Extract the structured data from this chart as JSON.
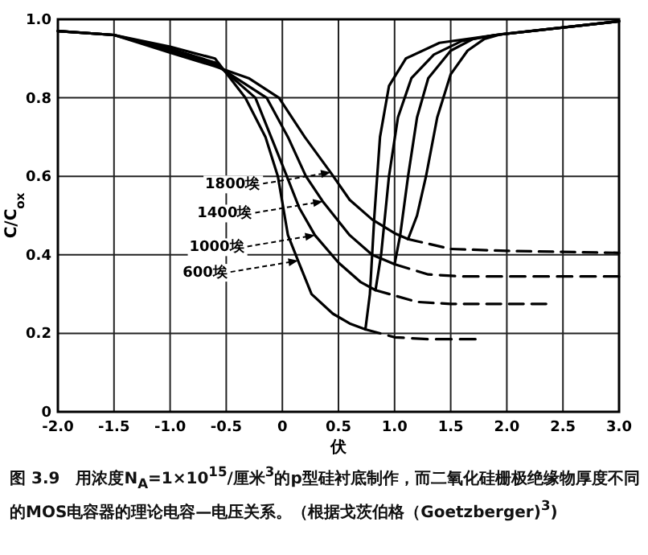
{
  "chart_data": {
    "type": "line",
    "xlabel": "伏",
    "ylabel": "C/C$_{ox}$",
    "xlim": [
      -2,
      3
    ],
    "ylim": [
      0,
      1
    ],
    "xticks": [
      {
        "value": -2,
        "label": "-2.0"
      },
      {
        "value": -1.5,
        "label": "-1.5"
      },
      {
        "value": -1,
        "label": "-1.0"
      },
      {
        "value": -0.5,
        "label": "-0.5"
      },
      0,
      0.5,
      {
        "value": 1,
        "label": "1.0"
      },
      1.5,
      {
        "value": 2,
        "label": "2.0"
      },
      2.5,
      {
        "value": 3,
        "label": "3.0"
      }
    ],
    "yticks": [
      0,
      0.2,
      0.4,
      0.6,
      0.8,
      {
        "value": 1,
        "label": "1.0"
      }
    ],
    "grid": true,
    "series": [
      {
        "color": "#000000",
        "line_style": "solid",
        "x": [
          -2,
          -1.5,
          -1,
          -0.6,
          -0.33,
          -0.15,
          -0.04,
          0.05,
          0.14,
          0.26,
          0.45,
          0.6,
          0.74,
          0.78,
          0.82,
          0.87,
          0.95,
          1.1,
          1.4,
          1.9,
          3
        ],
        "values": [
          0.97,
          0.96,
          0.93,
          0.9,
          0.8,
          0.7,
          0.6,
          0.45,
          0.385,
          0.3,
          0.25,
          0.225,
          0.21,
          0.3,
          0.5,
          0.7,
          0.83,
          0.9,
          0.94,
          0.96,
          0.995
        ]
      },
      {
        "color": "#000000",
        "line_style": "solid",
        "x": [
          -2,
          -1.5,
          -1,
          -0.6,
          -0.24,
          -0.1,
          0.04,
          0.15,
          0.29,
          0.5,
          0.7,
          0.83,
          0.88,
          0.95,
          1.03,
          1.15,
          1.35,
          1.6,
          1.9,
          3
        ],
        "values": [
          0.97,
          0.96,
          0.925,
          0.89,
          0.8,
          0.7,
          0.6,
          0.52,
          0.45,
          0.38,
          0.33,
          0.31,
          0.4,
          0.6,
          0.75,
          0.85,
          0.91,
          0.945,
          0.96,
          0.995
        ]
      },
      {
        "color": "#000000",
        "line_style": "solid",
        "x": [
          -2,
          -1.5,
          -1,
          -0.6,
          -0.14,
          0.05,
          0.21,
          0.36,
          0.6,
          0.8,
          1.0,
          1.05,
          1.12,
          1.2,
          1.3,
          1.5,
          1.7,
          1.9,
          3
        ],
        "values": [
          0.97,
          0.96,
          0.92,
          0.885,
          0.8,
          0.7,
          0.6,
          0.536,
          0.45,
          0.4,
          0.376,
          0.45,
          0.6,
          0.75,
          0.85,
          0.92,
          0.95,
          0.96,
          0.995
        ]
      },
      {
        "color": "#000000",
        "line_style": "solid",
        "x": [
          -2,
          -1.5,
          -1,
          -0.6,
          -0.3,
          -0.03,
          0.2,
          0.43,
          0.6,
          0.8,
          1.0,
          1.12,
          1.2,
          1.28,
          1.38,
          1.5,
          1.65,
          1.8,
          1.95,
          3
        ],
        "values": [
          0.97,
          0.96,
          0.915,
          0.88,
          0.85,
          0.8,
          0.7,
          0.61,
          0.54,
          0.49,
          0.455,
          0.44,
          0.5,
          0.6,
          0.75,
          0.86,
          0.92,
          0.95,
          0.962,
          0.995
        ]
      },
      {
        "color": "#000000",
        "line_style": "dashed",
        "x": [
          0.74,
          1.0,
          1.3,
          1.72
        ],
        "values": [
          0.21,
          0.19,
          0.185,
          0.185
        ]
      },
      {
        "color": "#000000",
        "line_style": "dashed",
        "x": [
          0.83,
          1.2,
          1.5,
          2.35
        ],
        "values": [
          0.31,
          0.28,
          0.275,
          0.275
        ]
      },
      {
        "color": "#000000",
        "line_style": "dashed",
        "x": [
          1.0,
          1.3,
          1.6,
          3
        ],
        "values": [
          0.376,
          0.35,
          0.345,
          0.345
        ]
      },
      {
        "color": "#000000",
        "line_style": "dashed",
        "x": [
          1.12,
          1.5,
          2.0,
          3
        ],
        "values": [
          0.44,
          0.415,
          0.41,
          0.405
        ]
      }
    ],
    "annotations": [
      {
        "text": "1800埃",
        "x": 0.43,
        "y": 0.61
      },
      {
        "text": "1400埃",
        "x": 0.36,
        "y": 0.536
      },
      {
        "text": "1000埃",
        "x": 0.29,
        "y": 0.45
      },
      {
        "text": "600埃",
        "x": 0.14,
        "y": 0.385
      },
      "图 3.9　用浓度N$_{A}$=1×10$^{15}$/厘米$^{3}$的p型硅衬底制作，而二氧化硅栅极绝缘物厚度不同的MOS电容器的理论电容—电压关系。（根据戈茨伯格（Goetzberger)$^{3}$)"
    ]
  }
}
